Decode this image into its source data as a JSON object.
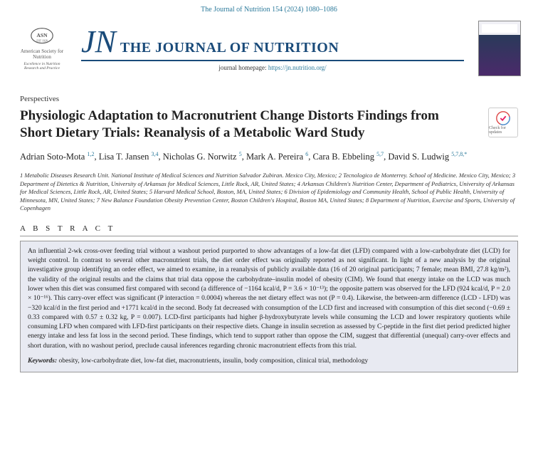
{
  "citation": "The Journal of Nutrition 154 (2024) 1080–1086",
  "society": {
    "logo_label": "ASN EST 1928",
    "name": "American Society for Nutrition",
    "tagline": "Excellence in Nutrition Research and Practice"
  },
  "journal": {
    "short": "JN",
    "full": "THE JOURNAL OF NUTRITION",
    "homepage_prefix": "journal homepage: ",
    "homepage_url": "https://jn.nutrition.org/"
  },
  "article_type": "Perspectives",
  "title": "Physiologic Adaptation to Macronutrient Change Distorts Findings from Short Dietary Trials: Reanalysis of a Metabolic Ward Study",
  "updates_label": "Check for updates",
  "authors_html": "Adrian Soto-Mota <sup>1,2</sup>, Lisa T. Jansen <sup>3,4</sup>, Nicholas G. Norwitz <sup>5</sup>, Mark A. Pereira <sup>6</sup>, Cara B. Ebbeling <sup>5,7</sup>, David S. Ludwig <sup>5,7,8,*</sup>",
  "affiliations": "1 Metabolic Diseases Research Unit. National Institute of Medical Sciences and Nutrition Salvador Zubiran. Mexico City, Mexico; 2 Tecnologico de Monterrey. School of Medicine. Mexico City, Mexico; 3 Department of Dietetics & Nutrition, University of Arkansas for Medical Sciences, Little Rock, AR, United States; 4 Arkansas Children's Nutrition Center, Department of Pediatrics, University of Arkansas for Medical Sciences, Little Rock, AR, United States; 5 Harvard Medical School, Boston, MA, United States; 6 Division of Epidemiology and Community Health, School of Public Health, University of Minnesota, MN, United States; 7 New Balance Foundation Obesity Prevention Center, Boston Children's Hospital, Boston MA, United States; 8 Department of Nutrition, Exercise and Sports, University of Copenhagen",
  "abstract_heading": "A B S T R A C T",
  "abstract_body": "An influential 2-wk cross-over feeding trial without a washout period purported to show advantages of a low-fat diet (LFD) compared with a low-carbohydrate diet (LCD) for weight control. In contrast to several other macronutrient trials, the diet order effect was originally reported as not significant. In light of a new analysis by the original investigative group identifying an order effect, we aimed to examine, in a reanalysis of publicly available data (16 of 20 original participants; 7 female; mean BMI, 27.8 kg/m²), the validity of the original results and the claims that trial data oppose the carbohydrate–insulin model of obesity (CIM). We found that energy intake on the LCD was much lower when this diet was consumed first compared with second (a difference of −1164 kcal/d, P = 3.6 × 10⁻¹³); the opposite pattern was observed for the LFD (924 kcal/d, P = 2.0 × 10⁻¹⁶). This carry-over effect was significant (P interaction = 0.0004) whereas the net dietary effect was not (P = 0.4). Likewise, the between-arm difference (LCD - LFD) was −320 kcal/d in the first period and +1771 kcal/d in the second. Body fat decreased with consumption of the LCD first and increased with consumption of this diet second (−0.69 ± 0.33 compared with 0.57 ± 0.32 kg, P = 0.007). LCD-first participants had higher β-hydroxybutyrate levels while consuming the LCD and lower respiratory quotients while consuming LFD when compared with LFD-first participants on their respective diets. Change in insulin secretion as assessed by C-peptide in the first diet period predicted higher energy intake and less fat loss in the second period. These findings, which tend to support rather than oppose the CIM, suggest that differential (unequal) carry-over effects and short duration, with no washout period, preclude causal inferences regarding chronic macronutrient effects from this trial.",
  "keywords_label": "Keywords:",
  "keywords_text": " obesity, low-carbohydrate diet, low-fat diet, macronutrients, insulin, body composition, clinical trial, methodology",
  "colors": {
    "link": "#2b7a9b",
    "brand": "#1a4b7a",
    "abstract_bg": "#e8eaf2"
  }
}
